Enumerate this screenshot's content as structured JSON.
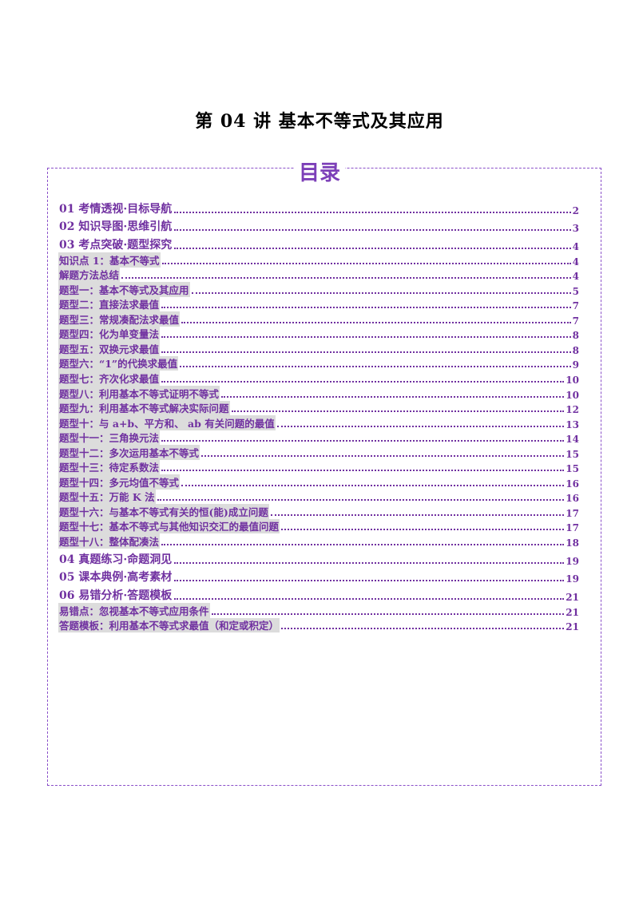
{
  "document": {
    "title": "第 04 讲  基本不等式及其应用",
    "toc_heading": "目录",
    "toc": [
      {
        "label": "01 考情透视·目标导航",
        "page": "2",
        "level": 1
      },
      {
        "label": "02 知识导图·思维引航",
        "page": "3",
        "level": 1
      },
      {
        "label": "03 考点突破·题型探究",
        "page": "4",
        "level": 1
      },
      {
        "label": "知识点 1：基本不等式",
        "page": "4",
        "level": 2
      },
      {
        "label": "解题方法总结",
        "page": "4",
        "level": 2
      },
      {
        "label": "题型一：基本不等式及其应用",
        "page": "5",
        "level": 2
      },
      {
        "label": "题型二：直接法求最值",
        "page": "7",
        "level": 2
      },
      {
        "label": "题型三：常规凑配法求最值",
        "page": "7",
        "level": 2
      },
      {
        "label": "题型四：化为单变量法",
        "page": "8",
        "level": 2
      },
      {
        "label": "题型五：双换元求最值",
        "page": "8",
        "level": 2
      },
      {
        "label": "题型六：“1”的代换求最值",
        "page": "9",
        "level": 2
      },
      {
        "label": "题型七：齐次化求最值",
        "page": "10",
        "level": 2
      },
      {
        "label": "题型八：利用基本不等式证明不等式",
        "page": "10",
        "level": 2
      },
      {
        "label": "题型九：利用基本不等式解决实际问题",
        "page": "12",
        "level": 2
      },
      {
        "label": "题型十：与 a+b、平方和、 ab 有关问题的最值",
        "page": "13",
        "level": 2
      },
      {
        "label": "题型十一：三角换元法",
        "page": "14",
        "level": 2
      },
      {
        "label": "题型十二：多次运用基本不等式",
        "page": "15",
        "level": 2
      },
      {
        "label": "题型十三：待定系数法",
        "page": "15",
        "level": 2
      },
      {
        "label": "题型十四：多元均值不等式",
        "page": "16",
        "level": 2
      },
      {
        "label": "题型十五：万能 K 法",
        "page": "16",
        "level": 2
      },
      {
        "label": "题型十六：与基本不等式有关的恒(能)成立问题",
        "page": "17",
        "level": 2
      },
      {
        "label": "题型十七：基本不等式与其他知识交汇的最值问题",
        "page": "17",
        "level": 2
      },
      {
        "label": "题型十八：整体配凑法",
        "page": "18",
        "level": 2
      },
      {
        "label": "04 真题练习·命题洞见",
        "page": "19",
        "level": 1
      },
      {
        "label": "05 课本典例·高考素材",
        "page": "19",
        "level": 1
      },
      {
        "label": "06 易错分析·答题模板",
        "page": "21",
        "level": 1
      },
      {
        "label": "易错点：忽视基本不等式应用条件",
        "page": "21",
        "level": 2
      },
      {
        "label": "答题模板：利用基本不等式求最值（和定或积定）",
        "page": "21",
        "level": 2
      }
    ]
  }
}
